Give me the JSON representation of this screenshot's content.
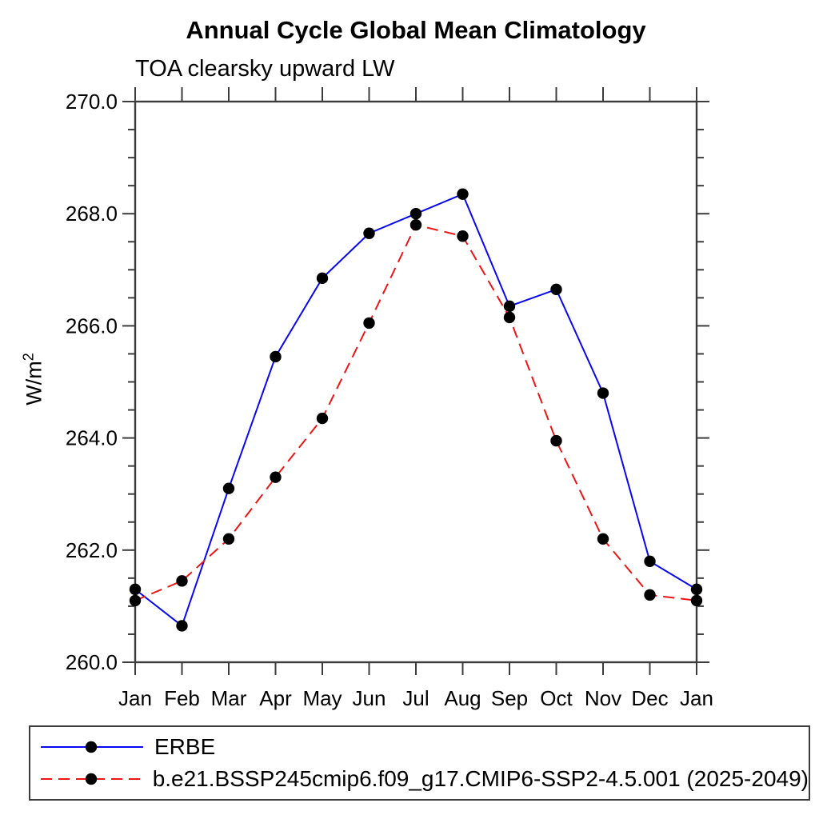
{
  "chart_data": {
    "type": "line",
    "title": "Annual Cycle Global Mean Climatology",
    "subtitle": "TOA clearsky upward LW",
    "ylabel_base": "W/m",
    "ylabel_exp": "2",
    "x_categories": [
      "Jan",
      "Feb",
      "Mar",
      "Apr",
      "May",
      "Jun",
      "Jul",
      "Aug",
      "Sep",
      "Oct",
      "Nov",
      "Dec",
      "Jan"
    ],
    "ylim": [
      260.0,
      270.0
    ],
    "ytick_major": [
      260.0,
      262.0,
      264.0,
      266.0,
      268.0,
      270.0
    ],
    "ytick_labels": [
      "260.0",
      "262.0",
      "264.0",
      "266.0",
      "268.0",
      "270.0"
    ],
    "ytick_minor_step": 0.5,
    "grid": false,
    "legend_position": "bottom",
    "axis_color": "#3c3c3c",
    "series": [
      {
        "name": "ERBE",
        "color": "#0808f0",
        "line_style": "solid",
        "marker": "circle",
        "marker_color": "#000000",
        "values": [
          261.3,
          260.65,
          263.1,
          265.45,
          266.85,
          267.65,
          268.0,
          268.35,
          266.35,
          266.65,
          264.8,
          261.8,
          261.3
        ]
      },
      {
        "name": "b.e21.BSSP245cmip6.f09_g17.CMIP6-SSP2-4.5.001 (2025-2049)",
        "color": "#f01414",
        "line_style": "dashed",
        "marker": "circle",
        "marker_color": "#000000",
        "values": [
          261.1,
          261.45,
          262.2,
          263.3,
          264.35,
          266.05,
          267.8,
          267.6,
          266.15,
          263.95,
          262.2,
          261.2,
          261.1
        ]
      }
    ]
  }
}
